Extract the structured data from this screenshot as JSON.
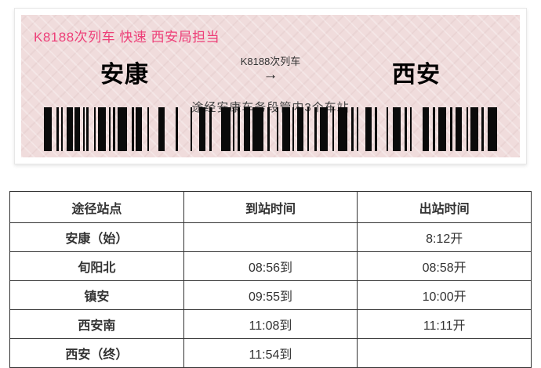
{
  "colors": {
    "accent_pink": "#ed3f78",
    "ticket_bg": "#f0dcdc",
    "table_border": "#333333",
    "text_dark": "#333333"
  },
  "ticket": {
    "title": "K8188次列车 快速 西安局担当",
    "from_station": "安康",
    "to_station": "西安",
    "train_label": "K8188次列车",
    "arrow": "→",
    "note": "途经安康车务段管内3个车站",
    "barcode": {
      "name": "barcode",
      "pattern": [
        [
          10,
          6
        ],
        [
          3,
          3
        ],
        [
          2,
          5
        ],
        [
          8,
          2
        ],
        [
          7,
          4
        ],
        [
          2,
          2
        ],
        [
          3,
          7
        ],
        [
          2,
          3
        ],
        [
          10,
          4
        ],
        [
          2,
          3
        ],
        [
          3,
          3
        ],
        [
          12,
          6
        ],
        [
          3,
          2
        ],
        [
          8,
          7
        ],
        [
          2,
          12
        ],
        [
          8,
          14
        ],
        [
          3,
          16
        ],
        [
          2,
          9
        ],
        [
          8,
          5
        ],
        [
          3,
          12
        ],
        [
          12,
          3
        ],
        [
          2,
          4
        ],
        [
          3,
          5
        ],
        [
          8,
          3
        ],
        [
          14,
          5
        ],
        [
          3,
          9
        ],
        [
          2,
          5
        ],
        [
          10,
          3
        ],
        [
          2,
          4
        ],
        [
          8,
          5
        ],
        [
          2,
          7
        ],
        [
          3,
          4
        ],
        [
          10,
          6
        ],
        [
          2,
          5
        ],
        [
          12,
          5
        ],
        [
          3,
          4
        ],
        [
          2,
          9
        ],
        [
          8,
          4
        ],
        [
          3,
          12
        ],
        [
          2,
          6
        ],
        [
          10,
          5
        ],
        [
          3,
          4
        ],
        [
          2,
          14
        ],
        [
          8,
          5
        ],
        [
          3,
          4
        ],
        [
          10,
          5
        ],
        [
          3,
          4
        ],
        [
          8,
          6
        ],
        [
          2,
          3
        ],
        [
          10,
          4
        ],
        [
          3,
          5
        ],
        [
          12,
          0
        ]
      ]
    }
  },
  "table": {
    "headers": [
      "途径站点",
      "到站时间",
      "出站时间"
    ],
    "rows": [
      [
        "安康（始）",
        "",
        "8:12开"
      ],
      [
        "旬阳北",
        "08:56到",
        "08:58开"
      ],
      [
        "镇安",
        "09:55到",
        "10:00开"
      ],
      [
        "西安南",
        "11:08到",
        "11:11开"
      ],
      [
        "西安（终）",
        "11:54到",
        ""
      ]
    ]
  }
}
